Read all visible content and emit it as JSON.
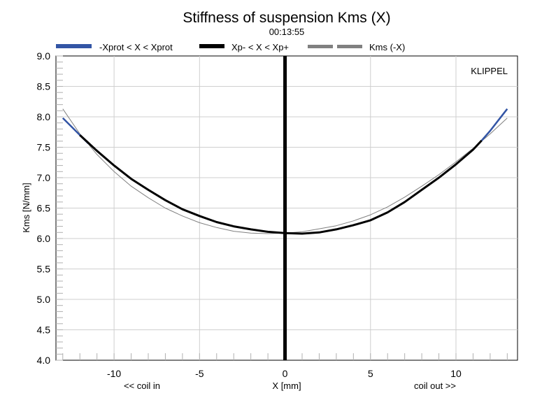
{
  "chart_data": {
    "type": "line",
    "title": "Stiffness of suspension Kms (X)",
    "subtitle": "00:13:55",
    "watermark": "KLIPPEL",
    "xlabel": "X [mm]",
    "xlabel_left": "<< coil in",
    "xlabel_right": "coil out >>",
    "ylabel": "Kms [N/mm]",
    "xlim": [
      -13.4,
      13.6
    ],
    "ylim": [
      4.0,
      9.0
    ],
    "x_ticks": [
      -10,
      -5,
      0,
      5,
      10
    ],
    "x_tick_labels": [
      "-10",
      "-5",
      "0",
      "5",
      "10"
    ],
    "y_ticks": [
      4.0,
      4.5,
      5.0,
      5.5,
      6.0,
      6.5,
      7.0,
      7.5,
      8.0,
      8.5,
      9.0
    ],
    "y_tick_labels": [
      "4.0",
      "4.5",
      "5.0",
      "5.5",
      "6.0",
      "6.5",
      "7.0",
      "7.5",
      "8.0",
      "8.5",
      "9.0"
    ],
    "grid": true,
    "legend_position": "top",
    "colors": {
      "protected": "#3355a5",
      "operating": "#000000",
      "mirror": "#808080",
      "marker": "#000000"
    },
    "series": [
      {
        "name": "-Xprot < X < Xprot",
        "x": [
          -13.0,
          -12.5,
          -12.0,
          -11.5,
          11.5,
          12.0,
          12.5,
          13.0
        ],
        "y": [
          7.98,
          7.84,
          7.7,
          7.56,
          7.61,
          7.77,
          7.95,
          8.13
        ]
      },
      {
        "name": "Xp- < X < Xp+",
        "x": [
          -12.0,
          -11.0,
          -10.0,
          -9.0,
          -8.0,
          -7.0,
          -6.0,
          -5.0,
          -4.0,
          -3.0,
          -2.0,
          -1.0,
          0.0,
          1.0,
          2.0,
          3.0,
          4.0,
          5.0,
          6.0,
          7.0,
          8.0,
          9.0,
          10.0,
          11.0,
          11.5
        ],
        "y": [
          7.7,
          7.44,
          7.2,
          6.98,
          6.8,
          6.63,
          6.48,
          6.37,
          6.27,
          6.2,
          6.15,
          6.11,
          6.09,
          6.08,
          6.1,
          6.15,
          6.22,
          6.3,
          6.43,
          6.6,
          6.8,
          7.0,
          7.22,
          7.46,
          7.61
        ]
      },
      {
        "name": "Kms (-X)",
        "x": [
          -13.0,
          -12.0,
          -11.0,
          -10.0,
          -9.0,
          -8.0,
          -7.0,
          -6.0,
          -5.0,
          -4.0,
          -3.0,
          -2.0,
          -1.0,
          0.0,
          1.0,
          2.0,
          3.0,
          4.0,
          5.0,
          6.0,
          7.0,
          8.0,
          9.0,
          10.0,
          11.0,
          12.0,
          13.0
        ],
        "y": [
          8.13,
          7.72,
          7.38,
          7.1,
          6.86,
          6.67,
          6.5,
          6.37,
          6.26,
          6.18,
          6.12,
          6.09,
          6.08,
          6.09,
          6.11,
          6.16,
          6.21,
          6.29,
          6.39,
          6.52,
          6.68,
          6.86,
          7.05,
          7.26,
          7.48,
          7.72,
          7.98
        ]
      }
    ],
    "marker_x": 0
  }
}
